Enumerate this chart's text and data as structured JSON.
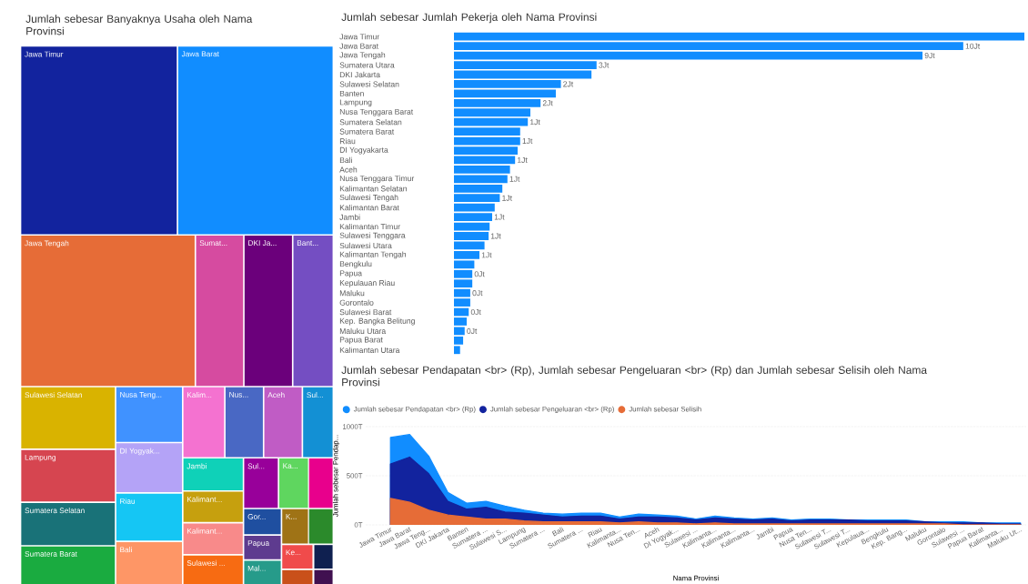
{
  "chart_data": [
    {
      "type": "other",
      "title": "Jumlah sebesar Banyaknya Usaha oleh Nama Provinsi",
      "categories": [
        "Jawa Timur",
        "Jawa Barat",
        "Jawa Tengah",
        "Sumat...",
        "DKI Ja...",
        "Bant...",
        "Sulawesi Selatan",
        "Lampung",
        "Sumatera Selatan",
        "Sumatera Barat",
        "Nusa Teng...",
        "DI Yogyak...",
        "Riau",
        "Bali",
        "Kalim...",
        "Nus...",
        "Aceh",
        "Sul...",
        "Jambi",
        "Kalimant...",
        "Kalimant...",
        "Sulawesi ...",
        "Sul...",
        "Ka...",
        "Gor...",
        "Papua",
        "Mal...",
        null,
        "K...",
        null,
        "Ke...",
        null,
        null,
        null
      ],
      "colors": [
        "#12239e",
        "#118dff",
        "#e66c37",
        "#d64ba0",
        "#6b007b",
        "#744ec2",
        "#d9b300",
        "#d64550",
        "#197278",
        "#1aab40",
        "#4092ff",
        "#b4a3f7",
        "#15c6f4",
        "#fe9666",
        "#f472d0",
        "#4968c4",
        "#c05cc5",
        "#1390d4",
        "#0fd1b8",
        "#c6a00e",
        "#f88a8a",
        "#f76b12",
        "#98009a",
        "#5fd65f",
        "#1f4fa0",
        "#5e3b8f",
        "#269b8a",
        "#e8008c",
        "#9f7316",
        "#2b8a2b",
        "#f04b4b",
        "#0f2050",
        "#c9501a",
        "#401050"
      ]
    },
    {
      "type": "bar",
      "orientation": "horizontal",
      "title": "Jumlah sebesar Jumlah Pekerja oleh Nama Provinsi",
      "color": "#118dff",
      "categories": [
        "Jawa Timur",
        "Jawa Barat",
        "Jawa Tengah",
        "Sumatera Utara",
        "DKI Jakarta",
        "Sulawesi Selatan",
        "Banten",
        "Lampung",
        "Nusa Tenggara Barat",
        "Sumatera Selatan",
        "Sumatera Barat",
        "Riau",
        "DI Yogyakarta",
        "Bali",
        "Aceh",
        "Nusa Tenggara Timur",
        "Kalimantan Selatan",
        "Sulawesi Tengah",
        "Kalimantan Barat",
        "Jambi",
        "Kalimantan Timur",
        "Sulawesi Tenggara",
        "Sulawesi Utara",
        "Kalimantan Tengah",
        "Bengkulu",
        "Papua",
        "Kepulauan Riau",
        "Maluku",
        "Gorontalo",
        "Sulawesi Barat",
        "Kep. Bangka Belitung",
        "Maluku Utara",
        "Papua Barat",
        "Kalimantan Utara"
      ],
      "values": [
        11.2,
        10,
        9.2,
        2.8,
        2.7,
        2.1,
        2.0,
        1.7,
        1.5,
        1.45,
        1.3,
        1.3,
        1.25,
        1.2,
        1.1,
        1.05,
        0.95,
        0.9,
        0.8,
        0.75,
        0.7,
        0.68,
        0.6,
        0.5,
        0.4,
        0.36,
        0.36,
        0.32,
        0.32,
        0.29,
        0.25,
        0.21,
        0.18,
        0.12
      ],
      "value_labels": [
        null,
        "10Jt",
        "9Jt",
        "3Jt",
        null,
        "2Jt",
        null,
        "2Jt",
        null,
        "1Jt",
        null,
        "1Jt",
        null,
        "1Jt",
        null,
        "1Jt",
        null,
        "1Jt",
        null,
        "1Jt",
        null,
        "1Jt",
        null,
        "1Jt",
        null,
        "0Jt",
        null,
        "0Jt",
        null,
        "0Jt",
        null,
        "0Jt",
        null,
        null
      ]
    },
    {
      "type": "area",
      "title": "Jumlah sebesar Pendapatan <br> (Rp), Jumlah sebesar Pengeluaran <br> (Rp) dan Jumlah sebesar Selisih oleh Nama Provinsi",
      "xlabel": "Nama Provinsi",
      "ylabel": "Jumlah sebesar Pendap...",
      "categories": [
        "Jawa Timur",
        "Jawa Barat",
        "Jawa Teng...",
        "DKI Jakarta",
        "Banten",
        "Sumatera ...",
        "Sulawesi S...",
        "Lampung",
        "Sumatera ...",
        "Bali",
        "Sumatera ...",
        "Riau",
        "Kalimanta...",
        "Nusa Ten...",
        "Aceh",
        "DI Yogyak...",
        "Sulawesi ...",
        "Kalimanta...",
        "Kalimanta...",
        "Kalimanta...",
        "Jambi",
        "Papua",
        "Nusa Ten...",
        "Sulawesi T...",
        "Sulawesi T...",
        "Kepulaua...",
        "Bengkulu",
        "Kep. Bang...",
        "Maluku",
        "Gorontalo",
        "Sulawesi ...",
        "Papua Barat",
        "Kalimanta...",
        "Maluku Ut..."
      ],
      "ylim": [
        0,
        1000
      ],
      "yticks": [
        {
          "value": 0,
          "label": "0T"
        },
        {
          "value": 500,
          "label": "500T"
        },
        {
          "value": 1000,
          "label": "1000T"
        }
      ],
      "grid": "y",
      "legend": "top left",
      "series": [
        {
          "name": "Jumlah sebesar Pendapatan <br> (Rp)",
          "color": "#118dff",
          "values": [
            890,
            920,
            700,
            330,
            220,
            240,
            190,
            150,
            120,
            110,
            120,
            120,
            80,
            110,
            100,
            90,
            60,
            90,
            70,
            60,
            70,
            50,
            60,
            60,
            50,
            50,
            50,
            50,
            30,
            30,
            30,
            20,
            20,
            20
          ]
        },
        {
          "name": "Jumlah sebesar Pengeluaran <br> (Rp)",
          "color": "#12239e",
          "values": [
            620,
            690,
            520,
            240,
            160,
            180,
            130,
            120,
            100,
            80,
            90,
            90,
            60,
            80,
            80,
            70,
            50,
            70,
            60,
            50,
            60,
            40,
            50,
            50,
            50,
            40,
            40,
            40,
            30,
            20,
            20,
            20,
            10,
            10
          ]
        },
        {
          "name": "Jumlah sebesar Selisih",
          "color": "#e66c37",
          "values": [
            270,
            230,
            150,
            100,
            80,
            60,
            60,
            40,
            30,
            30,
            30,
            30,
            20,
            30,
            20,
            20,
            10,
            20,
            10,
            10,
            10,
            10,
            10,
            10,
            10,
            10,
            10,
            10,
            10,
            10,
            0,
            0,
            0,
            0
          ]
        }
      ]
    }
  ]
}
